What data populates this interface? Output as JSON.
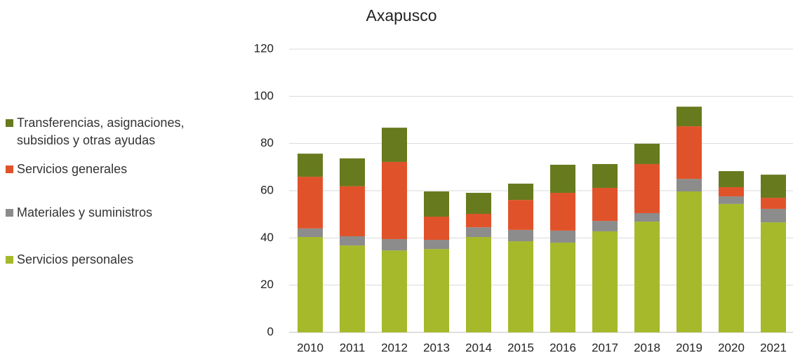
{
  "chart_data": {
    "type": "stacked_bar",
    "title": "Axapusco",
    "categories": [
      "2010",
      "2011",
      "2012",
      "2013",
      "2014",
      "2015",
      "2016",
      "2017",
      "2018",
      "2019",
      "2020",
      "2021"
    ],
    "series": [
      {
        "name": "Servicios personales",
        "color": "#a5b92a",
        "values": [
          40.4,
          36.8,
          34.7,
          35.3,
          40.4,
          38.6,
          38.0,
          42.8,
          46.9,
          59.7,
          54.4,
          46.6
        ]
      },
      {
        "name": "Materiales y suministros",
        "color": "#8c8c8c",
        "values": [
          3.6,
          3.9,
          4.8,
          3.9,
          4.1,
          4.8,
          5.1,
          4.4,
          3.6,
          5.3,
          3.2,
          5.7
        ]
      },
      {
        "name": "Servicios generales",
        "color": "#e0532a",
        "values": [
          21.9,
          21.2,
          32.7,
          9.8,
          5.7,
          12.7,
          16.0,
          14.0,
          20.8,
          22.3,
          3.9,
          4.7
        ]
      },
      {
        "name": "Transferencias, asignaciones, subsidios y otras ayudas",
        "color": "#677a1e",
        "values": [
          9.8,
          11.8,
          14.5,
          10.7,
          8.9,
          6.9,
          11.9,
          10.1,
          8.6,
          8.3,
          6.8,
          9.8
        ]
      }
    ],
    "ylim": [
      0,
      120
    ],
    "yticks": [
      0,
      20,
      40,
      60,
      80,
      100,
      120
    ],
    "grid": true,
    "legend": "left"
  }
}
